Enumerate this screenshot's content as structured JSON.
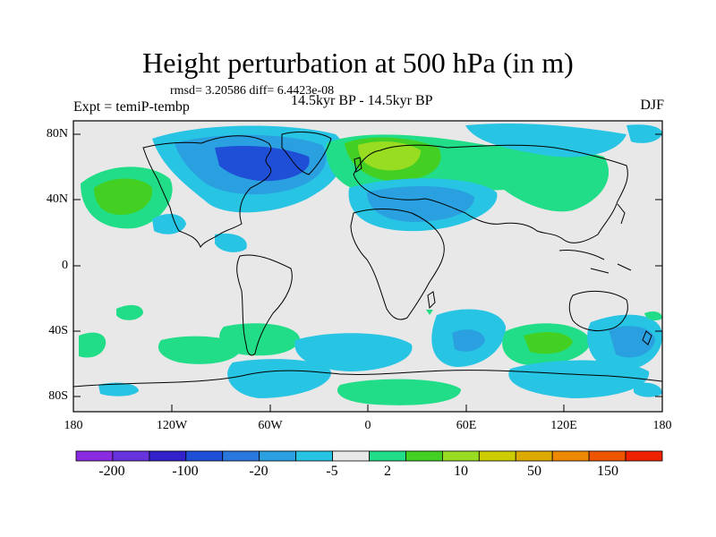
{
  "title": "Height perturbation at 500 hPa (in m)",
  "stats": "rmsd= 3.20586 diff= 6.4423e-08",
  "experiment": "Expt = temiP-tembp",
  "period": "14.5kyr BP - 14.5kyr BP",
  "season": "DJF",
  "map": {
    "lat_labels": [
      "80N",
      "40N",
      "0",
      "40S",
      "80S"
    ],
    "lon_labels": [
      "180",
      "120W",
      "60W",
      "0",
      "60E",
      "120E",
      "180"
    ],
    "background_color": "#e8e8e8"
  },
  "colorbar": {
    "labels": [
      "-200",
      "-100",
      "-20",
      "-5",
      "2",
      "10",
      "50",
      "150"
    ],
    "colors": [
      "#8a2be2",
      "#6633dd",
      "#3322cc",
      "#1f4fd6",
      "#2a78dd",
      "#2aa0e0",
      "#28c4e4",
      "#e8e8e8",
      "#22dd88",
      "#44d022",
      "#99dd22",
      "#cccc00",
      "#ddaa00",
      "#ee8800",
      "#ee5500",
      "#ee2200"
    ]
  }
}
